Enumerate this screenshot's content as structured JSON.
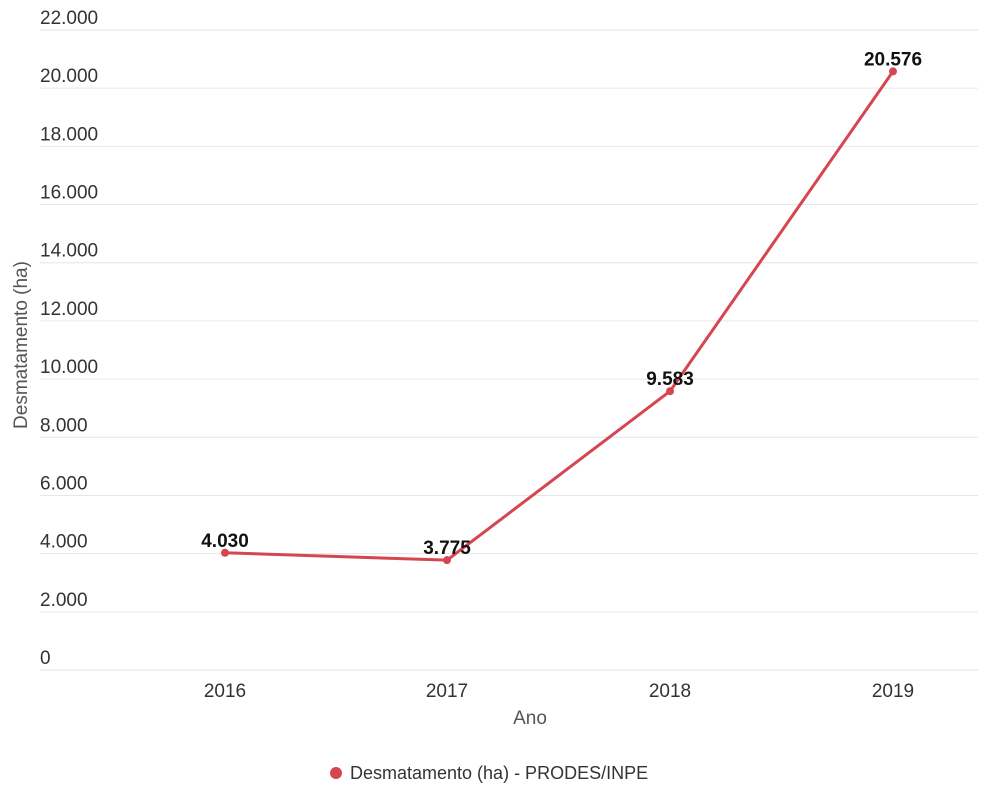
{
  "chart_data": {
    "type": "line",
    "x": [
      "2016",
      "2017",
      "2018",
      "2019"
    ],
    "series": [
      {
        "name": "Desmatamento (ha) - PRODES/INPE",
        "values": [
          4030,
          3775,
          9583,
          20576
        ],
        "data_labels": [
          "4.030",
          "3.775",
          "9.583",
          "20.576"
        ],
        "color": "#d64550"
      }
    ],
    "xlabel": "Ano",
    "ylabel": "Desmatamento (ha)",
    "ylim": [
      0,
      22000
    ],
    "y_ticks": [
      0,
      2000,
      4000,
      6000,
      8000,
      10000,
      12000,
      14000,
      16000,
      18000,
      20000,
      22000
    ],
    "y_tick_labels": [
      "0",
      "2.000",
      "4.000",
      "6.000",
      "8.000",
      "10.000",
      "12.000",
      "14.000",
      "16.000",
      "18.000",
      "20.000",
      "22.000"
    ],
    "grid": true,
    "legend": {
      "position": "bottom",
      "entries": [
        "Desmatamento (ha) - PRODES/INPE"
      ]
    }
  }
}
